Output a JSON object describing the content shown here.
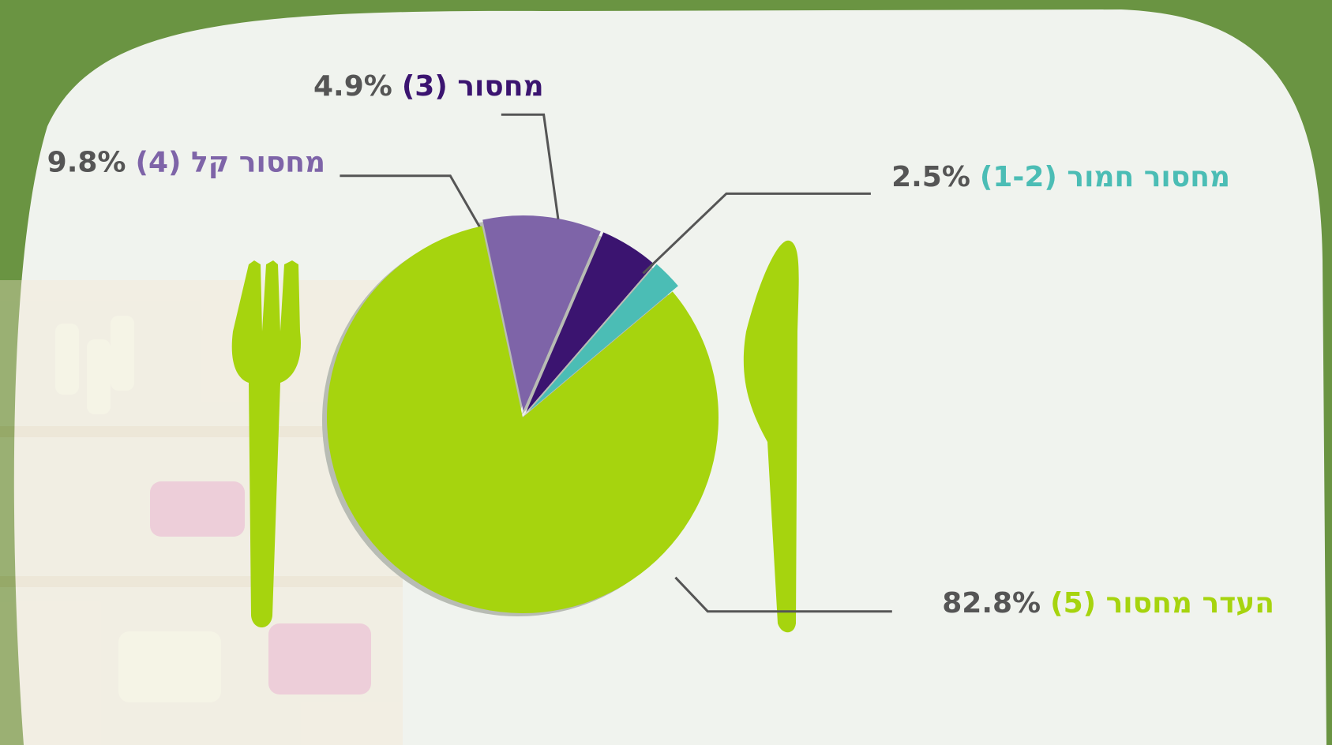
{
  "chart_data": {
    "type": "pie",
    "categories": [
      "מחסור קל (4)",
      "מחסור (3)",
      "מחסור חמור (1-2)",
      "העדר מחסור (5)"
    ],
    "values": [
      9.8,
      4.9,
      2.5,
      82.8
    ],
    "value_labels": [
      "9.8%",
      "4.9%",
      "2.5%",
      "82.8%"
    ],
    "colors": [
      "#7e64a8",
      "#3b1470",
      "#4bbdb5",
      "#a6d40e"
    ]
  }
}
